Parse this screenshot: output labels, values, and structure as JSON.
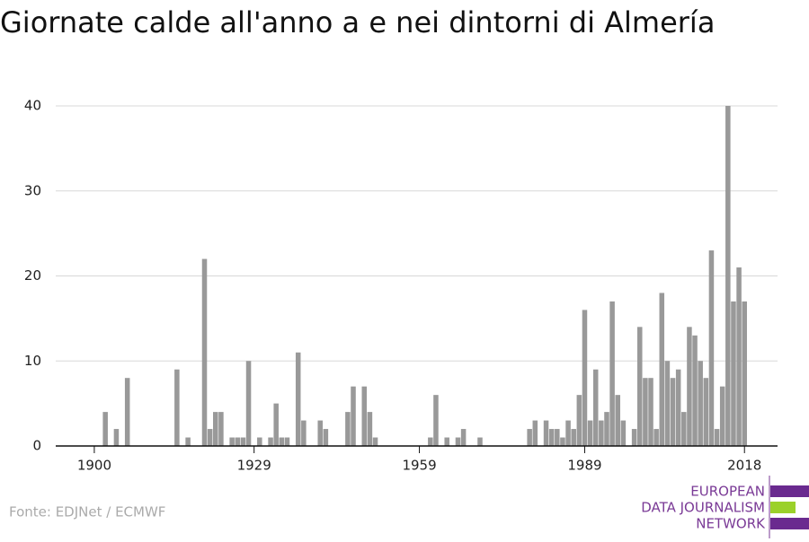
{
  "chart_data": {
    "type": "bar",
    "title": "Giornate calde all'anno a e nei dintorni di Almería",
    "x": [
      1902,
      1904,
      1906,
      1915,
      1917,
      1920,
      1921,
      1922,
      1923,
      1925,
      1926,
      1927,
      1928,
      1930,
      1932,
      1933,
      1934,
      1935,
      1937,
      1938,
      1941,
      1942,
      1946,
      1947,
      1949,
      1950,
      1951,
      1961,
      1962,
      1964,
      1966,
      1967,
      1970,
      1979,
      1980,
      1982,
      1983,
      1984,
      1985,
      1986,
      1987,
      1988,
      1989,
      1990,
      1991,
      1992,
      1993,
      1994,
      1995,
      1996,
      1998,
      1999,
      2000,
      2001,
      2002,
      2003,
      2004,
      2005,
      2006,
      2007,
      2008,
      2009,
      2010,
      2011,
      2012,
      2013,
      2014,
      2015,
      2016,
      2017,
      2018
    ],
    "values": [
      4,
      2,
      8,
      9,
      1,
      22,
      2,
      4,
      4,
      1,
      1,
      1,
      10,
      1,
      1,
      5,
      1,
      1,
      11,
      3,
      3,
      2,
      4,
      7,
      7,
      4,
      1,
      1,
      6,
      1,
      1,
      2,
      1,
      2,
      3,
      3,
      2,
      2,
      1,
      3,
      2,
      6,
      16,
      3,
      9,
      3,
      4,
      17,
      6,
      3,
      2,
      14,
      8,
      8,
      2,
      18,
      10,
      8,
      9,
      4,
      14,
      13,
      10,
      8,
      23,
      2,
      7,
      40,
      17,
      21,
      17
    ],
    "color": "#999999",
    "xlim": [
      1893,
      2024
    ],
    "xticks": [
      1900,
      1929,
      1959,
      1989,
      2018
    ],
    "ylim": [
      0,
      40
    ],
    "yticks": [
      0,
      10,
      20,
      30,
      40
    ],
    "grid": true
  },
  "footer": {
    "source": "Fonte: EDJNet / ECMWF",
    "logo": [
      "EUROPEAN",
      "DATA JOURNALISM",
      "NETWORK"
    ]
  }
}
